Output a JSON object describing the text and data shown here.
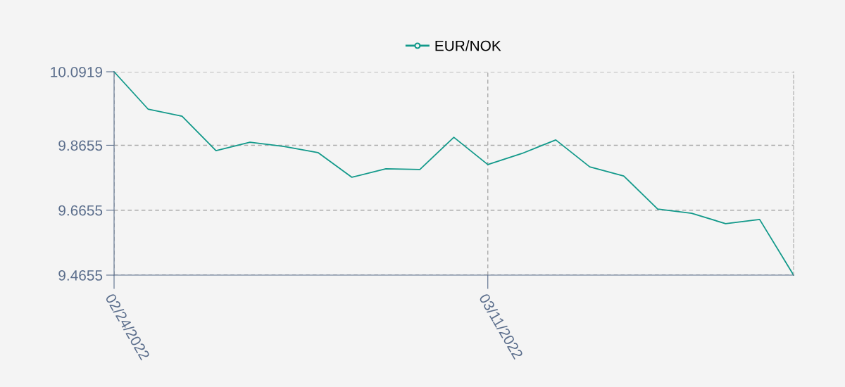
{
  "chart_data": {
    "type": "line",
    "categories": [
      "02/24/2022",
      null,
      null,
      null,
      null,
      null,
      null,
      null,
      null,
      null,
      null,
      "03/11/2022",
      null,
      null,
      null,
      null,
      null,
      null,
      null,
      null,
      null
    ],
    "series": [
      {
        "name": "EUR/NOK",
        "color": "#12998a",
        "values": [
          10.0919,
          9.977,
          9.955,
          9.849,
          9.875,
          9.862,
          9.843,
          9.767,
          9.793,
          9.791,
          9.89,
          9.806,
          9.84,
          9.882,
          9.799,
          9.771,
          9.669,
          9.656,
          9.624,
          9.637,
          9.4655
        ]
      }
    ],
    "ylim": [
      9.4655,
      10.0919
    ],
    "yticks": [
      9.4655,
      9.6655,
      9.8655,
      10.0919
    ],
    "grid": true,
    "legend": "top",
    "marker": "none",
    "line_style": "solid"
  }
}
